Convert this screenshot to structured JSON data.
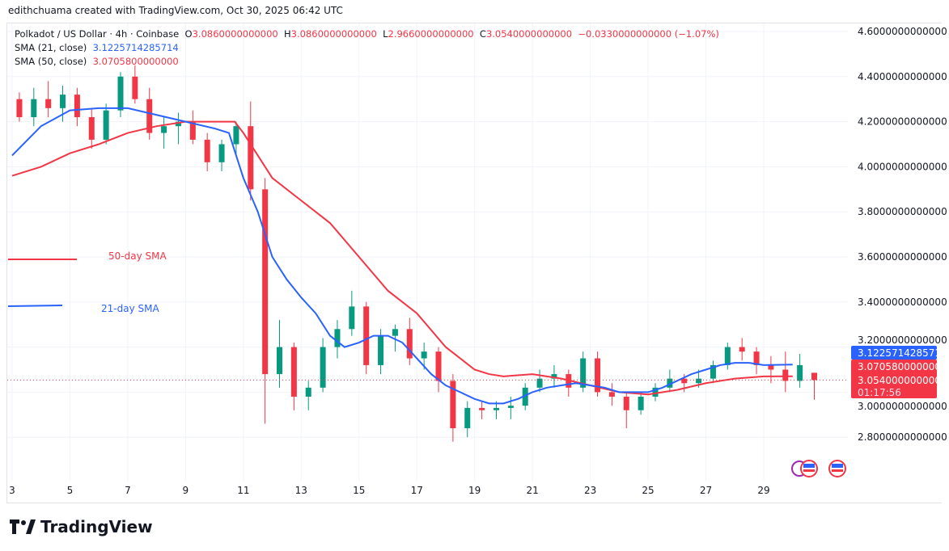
{
  "header": {
    "credit": "edithchuama created with TradingView.com, Oct 30, 2025 06:42 UTC"
  },
  "legend": {
    "symbol": "Polkadot / US Dollar · 4h · Coinbase",
    "o_label": "O",
    "o": "3.0860000000000",
    "h_label": "H",
    "h": "3.0860000000000",
    "l_label": "L",
    "l": "2.9660000000000",
    "c_label": "C",
    "c": "3.0540000000000",
    "change": "−0.0330000000000 (−1.07%)",
    "sma21_label": "SMA (21, close)",
    "sma21": "3.1225714285714",
    "sma50_label": "SMA (50, close)",
    "sma50": "3.0705800000000"
  },
  "annotations": {
    "sma50": "50-day SMA",
    "sma21": "21-day SMA"
  },
  "price_badges": {
    "sma21": "3.1225714285714",
    "sma50": "3.0705800000000",
    "last": "3.0540000000000",
    "countdown": "01:17:56"
  },
  "footer": {
    "logo_text": "TradingView"
  },
  "colors": {
    "up": "#089981",
    "down": "#f23645",
    "sma21": "#2962ff",
    "sma50": "#f23645"
  },
  "icons": [
    "us-flag-event-icon",
    "us-flag-event-icon",
    "sparkle-icon"
  ],
  "chart_data": {
    "type": "candlestick",
    "x_unit": "day of October 2025",
    "xticks": [
      3,
      5,
      7,
      9,
      11,
      13,
      15,
      17,
      19,
      21,
      23,
      25,
      27,
      29
    ],
    "ylim": [
      2.7,
      4.65
    ],
    "yticks": [
      "2.8000000000000",
      "3.0000000000000",
      "3.2000000000000",
      "3.4000000000000",
      "3.6000000000000",
      "3.8000000000000",
      "4.0000000000000",
      "4.2000000000000",
      "4.4000000000000",
      "4.6000000000000"
    ],
    "yticks_values": [
      2.8,
      3.0,
      3.2,
      3.4,
      3.6,
      3.8,
      4.0,
      4.2,
      4.4,
      4.6
    ],
    "grid": true,
    "candles_ohlc": [
      [
        4.3,
        4.33,
        4.2,
        4.22
      ],
      [
        4.22,
        4.35,
        4.18,
        4.3
      ],
      [
        4.3,
        4.38,
        4.22,
        4.26
      ],
      [
        4.26,
        4.36,
        4.2,
        4.32
      ],
      [
        4.32,
        4.35,
        4.18,
        4.22
      ],
      [
        4.22,
        4.26,
        4.08,
        4.12
      ],
      [
        4.12,
        4.28,
        4.1,
        4.25
      ],
      [
        4.25,
        4.42,
        4.22,
        4.4
      ],
      [
        4.4,
        4.45,
        4.28,
        4.3
      ],
      [
        4.3,
        4.35,
        4.12,
        4.15
      ],
      [
        4.15,
        4.22,
        4.08,
        4.18
      ],
      [
        4.18,
        4.24,
        4.1,
        4.2
      ],
      [
        4.2,
        4.25,
        4.1,
        4.12
      ],
      [
        4.12,
        4.15,
        3.98,
        4.02
      ],
      [
        4.02,
        4.12,
        3.98,
        4.1
      ],
      [
        4.1,
        4.2,
        4.05,
        4.18
      ],
      [
        4.18,
        4.29,
        3.85,
        3.9
      ],
      [
        3.9,
        3.95,
        2.86,
        3.08
      ],
      [
        3.08,
        3.32,
        3.02,
        3.2
      ],
      [
        3.2,
        3.22,
        2.92,
        2.98
      ],
      [
        2.98,
        3.05,
        2.92,
        3.02
      ],
      [
        3.02,
        3.24,
        3.0,
        3.2
      ],
      [
        3.2,
        3.32,
        3.15,
        3.28
      ],
      [
        3.28,
        3.45,
        3.25,
        3.38
      ],
      [
        3.38,
        3.4,
        3.08,
        3.12
      ],
      [
        3.12,
        3.28,
        3.08,
        3.25
      ],
      [
        3.25,
        3.3,
        3.18,
        3.28
      ],
      [
        3.28,
        3.33,
        3.12,
        3.15
      ],
      [
        3.15,
        3.22,
        3.1,
        3.18
      ],
      [
        3.18,
        3.2,
        3.0,
        3.05
      ],
      [
        3.05,
        3.08,
        2.78,
        2.84
      ],
      [
        2.84,
        2.96,
        2.8,
        2.93
      ],
      [
        2.93,
        2.96,
        2.88,
        2.92
      ],
      [
        2.92,
        2.96,
        2.88,
        2.93
      ],
      [
        2.93,
        2.98,
        2.88,
        2.94
      ],
      [
        2.94,
        3.04,
        2.92,
        3.02
      ],
      [
        3.02,
        3.1,
        3.0,
        3.06
      ],
      [
        3.06,
        3.12,
        3.02,
        3.08
      ],
      [
        3.08,
        3.1,
        2.98,
        3.02
      ],
      [
        3.02,
        3.18,
        3.0,
        3.15
      ],
      [
        3.15,
        3.18,
        2.98,
        3.0
      ],
      [
        3.0,
        3.04,
        2.94,
        2.98
      ],
      [
        2.98,
        3.0,
        2.84,
        2.92
      ],
      [
        2.92,
        3.0,
        2.9,
        2.98
      ],
      [
        2.98,
        3.04,
        2.96,
        3.02
      ],
      [
        3.02,
        3.1,
        3.0,
        3.06
      ],
      [
        3.06,
        3.08,
        3.0,
        3.04
      ],
      [
        3.04,
        3.1,
        3.02,
        3.06
      ],
      [
        3.06,
        3.14,
        3.04,
        3.12
      ],
      [
        3.12,
        3.22,
        3.1,
        3.2
      ],
      [
        3.2,
        3.24,
        3.14,
        3.18
      ],
      [
        3.18,
        3.2,
        3.08,
        3.12
      ],
      [
        3.12,
        3.16,
        3.04,
        3.1
      ],
      [
        3.1,
        3.18,
        3.0,
        3.05
      ],
      [
        3.05,
        3.17,
        3.02,
        3.12
      ],
      [
        3.086,
        3.086,
        2.966,
        3.054
      ]
    ],
    "candle_start_day": 3,
    "candle_step_days": 0.5,
    "sma21": {
      "days": [
        3,
        4,
        5,
        6,
        7,
        8,
        9,
        10,
        10.5,
        11,
        11.5,
        12,
        12.5,
        13,
        13.5,
        14,
        14.5,
        15,
        15.5,
        16,
        16.5,
        17,
        17.5,
        18,
        18.5,
        19,
        19.5,
        20,
        20.5,
        21,
        21.5,
        22,
        22.5,
        23,
        23.5,
        24,
        25,
        25.5,
        26,
        26.5,
        27,
        27.5,
        28,
        28.5,
        29,
        30
      ],
      "values": [
        4.05,
        4.18,
        4.25,
        4.26,
        4.26,
        4.23,
        4.2,
        4.17,
        4.15,
        3.95,
        3.8,
        3.6,
        3.5,
        3.42,
        3.35,
        3.25,
        3.2,
        3.22,
        3.25,
        3.25,
        3.22,
        3.15,
        3.08,
        3.03,
        3.0,
        2.97,
        2.95,
        2.95,
        2.97,
        3.0,
        3.02,
        3.03,
        3.04,
        3.03,
        3.02,
        3.0,
        3.0,
        3.02,
        3.05,
        3.08,
        3.1,
        3.12,
        3.13,
        3.13,
        3.12,
        3.1226
      ]
    },
    "sma50": {
      "days": [
        3,
        4,
        5,
        6,
        7,
        8,
        9,
        10,
        10.7,
        11,
        12,
        13,
        14,
        15,
        16,
        17,
        18,
        19,
        19.5,
        20,
        21,
        22,
        23,
        24,
        25,
        26,
        27,
        28,
        29,
        30
      ],
      "values": [
        3.96,
        4.0,
        4.06,
        4.1,
        4.15,
        4.18,
        4.2,
        4.2,
        4.2,
        4.15,
        3.95,
        3.85,
        3.75,
        3.6,
        3.45,
        3.35,
        3.2,
        3.1,
        3.08,
        3.07,
        3.08,
        3.06,
        3.03,
        3.0,
        2.99,
        3.01,
        3.04,
        3.06,
        3.07,
        3.0706
      ]
    }
  }
}
